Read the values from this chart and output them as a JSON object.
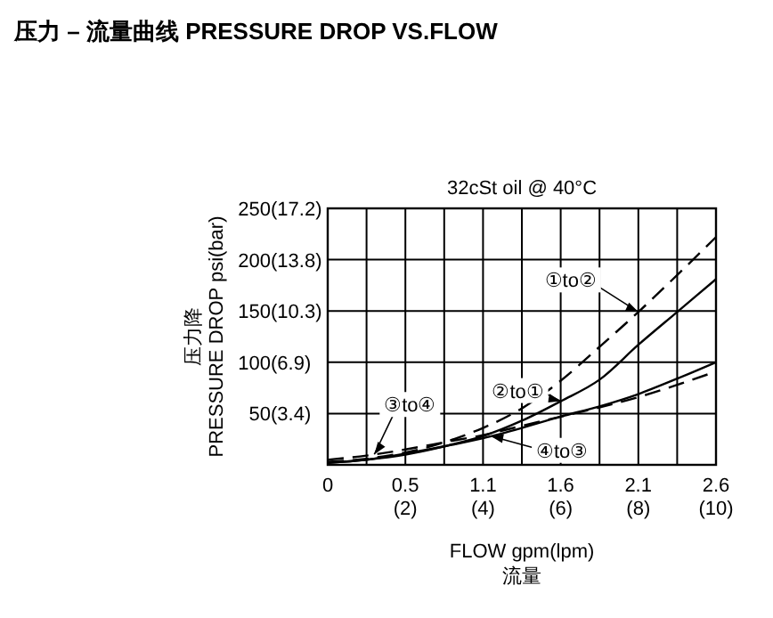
{
  "chart_data": {
    "type": "line",
    "title": "压力 – 流量曲线 PRESSURE DROP VS.FLOW",
    "subtitle": "32cSt oil @ 40°C",
    "xlabel": "FLOW gpm(lpm)\n流量",
    "ylabel": "压力降\nPRESSURE DROP psi(bar)",
    "x": [
      0,
      1,
      2,
      3,
      4,
      5,
      6,
      7,
      8,
      9,
      10
    ],
    "series": [
      {
        "name": "①to②",
        "color": "#000000",
        "line_style": "dashed",
        "values": [
          3,
          6,
          12,
          22,
          36,
          55,
          82,
          115,
          149,
          185,
          222
        ]
      },
      {
        "name": "②to①",
        "color": "#000000",
        "line_style": "solid",
        "values": [
          2,
          5,
          10,
          18,
          28,
          43,
          62,
          83,
          117,
          149,
          181
        ]
      },
      {
        "name": "③to④",
        "color": "#000000",
        "line_style": "dashed",
        "values": [
          5,
          9,
          15,
          22,
          29,
          38,
          47,
          56,
          66,
          78,
          91
        ]
      },
      {
        "name": "④to③",
        "color": "#000000",
        "line_style": "solid",
        "values": [
          2,
          5,
          11,
          18,
          26,
          36,
          47,
          57,
          69,
          84,
          100
        ]
      }
    ],
    "xlim": [
      0,
      10
    ],
    "ylim": [
      0,
      250
    ],
    "xticks": [
      {
        "value": 0,
        "label": null
      },
      {
        "value": 1,
        "label": null
      },
      {
        "value": 2,
        "label": "(2)"
      },
      {
        "value": 3,
        "label": null
      },
      {
        "value": 4,
        "label": "(4)"
      },
      {
        "value": 5,
        "label": null
      },
      {
        "value": 6,
        "label": "(6)"
      },
      {
        "value": 7,
        "label": null
      },
      {
        "value": 8,
        "label": "(8)"
      },
      {
        "value": 9,
        "label": null
      },
      {
        "value": 10,
        "label": "(10)"
      }
    ],
    "x2lim": [
      0,
      2.642
    ],
    "x2ticks": [
      0,
      {
        "value": 0.528,
        "label": "0.5"
      },
      {
        "value": 1.057,
        "label": "1.1"
      },
      {
        "value": 1.585,
        "label": "1.6"
      },
      {
        "value": 2.113,
        "label": "2.1"
      },
      {
        "value": 2.642,
        "label": "2.6"
      }
    ],
    "yticks": [
      {
        "value": 0,
        "label": null
      },
      50,
      100,
      150,
      200,
      250
    ],
    "y2lim": [
      0,
      17.24
    ],
    "y2ticks": [
      {
        "value": 3.448,
        "label": "(3.4)"
      },
      {
        "value": 6.895,
        "label": "(6.9)"
      },
      {
        "value": 10.34,
        "label": "(10.3)"
      },
      {
        "value": 13.79,
        "label": "(13.8)"
      },
      {
        "value": 17.24,
        "label": "(17.2)"
      }
    ],
    "grid": true,
    "marker": "none"
  }
}
